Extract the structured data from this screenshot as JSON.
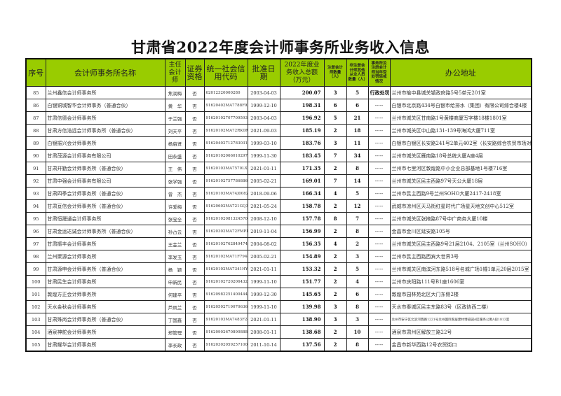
{
  "title": "甘肃省2022年度会计师事务所业务收入信息",
  "header_color": "#99cc00",
  "columns": [
    "序号",
    "会计师事务所名称",
    "主任会计师",
    "证券资格",
    "统一社会信用代码",
    "批准日期",
    "2022年度业务收入总额（万元）",
    "注册会计师数量（人）",
    "非注册会计师其他从业人员数量（人）",
    "事务所及注册会计师当年受处罚惩戒情况",
    "办公地址"
  ],
  "rows": [
    {
      "no": "85",
      "name": "兰州鑫信会计师事务所",
      "head": "焦润梅",
      "sec": "否",
      "code": "62012320000280",
      "date": "2003-04-03",
      "revenue": "200.07",
      "cpa": "3",
      "staff": "5",
      "penalty": "行政处罚",
      "address": "兰州市榆中县城关镇政府路5号5单元201室"
    },
    {
      "no": "86",
      "name": "白银铜城智华会计师事务（普通合伙）",
      "head": "黄　华",
      "sec": "否",
      "code": "91620402MA7788F93",
      "date": "1999-12-10",
      "revenue": "198.31",
      "cpa": "6",
      "staff": "6",
      "penalty": "-----",
      "address": "白银市北京路434号白银市给排水（集团）有限公司综合楼4楼"
    },
    {
      "no": "87",
      "name": "甘肃信德会计师事务所",
      "head": "于兰强",
      "sec": "否",
      "code": "916201027077095938",
      "date": "2003-04-03",
      "revenue": "196.92",
      "cpa": "5",
      "staff": "21",
      "penalty": "-----",
      "address": "兰州市城关区甘南路1号黄楼商厦写字楼18楼1801室"
    },
    {
      "no": "88",
      "name": "甘肃方信浩远会计师事务所（普通合伙）",
      "head": "刘天平",
      "sec": "否",
      "code": "91620102MA72RK0R20",
      "date": "2021-09-03",
      "revenue": "185.19",
      "cpa": "2",
      "staff": "18",
      "penalty": "-----",
      "address": "兰州市城关区中山路131-139号海鸿大厦711室"
    },
    {
      "no": "89",
      "name": "白银振兴会计师事务所",
      "head": "杨启贤",
      "sec": "否",
      "code": "916204027127830318",
      "date": "1999-03-10",
      "revenue": "183.76",
      "cpa": "3",
      "staff": "11",
      "penalty": "-----",
      "address": "白银市白银区长安路241号2单元402室（长安路综合农贸市场对面）"
    },
    {
      "no": "90",
      "name": "甘肃茂源会计师事务有限公司",
      "head": "田永盛",
      "sec": "否",
      "code": "91620102066010297",
      "date": "1999-11-30",
      "revenue": "183.45",
      "cpa": "7",
      "staff": "34",
      "penalty": "-----",
      "address": "兰州市城关区雁南路18号总统大厦A座4层"
    },
    {
      "no": "91",
      "name": "甘肃开勤会计师事务所（普通合伙）",
      "head": "王　伟",
      "sec": "否",
      "code": "91620103MA7570LX0P",
      "date": "2021-01-11",
      "revenue": "171.35",
      "cpa": "2",
      "staff": "8",
      "penalty": "-----",
      "address": "兰州市七里河区敦煌路中小企业总部基地1号楼716室"
    },
    {
      "no": "92",
      "name": "甘肃中强会计师事务有限公司",
      "head": "张学强",
      "sec": "否",
      "code": "91620102757786886",
      "date": "2005-02-21",
      "revenue": "169.01",
      "cpa": "7",
      "staff": "14",
      "penalty": "-----",
      "address": "兰州市城关区民主西路97号天公大厦18层"
    },
    {
      "no": "93",
      "name": "甘肃四季会计师事务所（普通合伙）",
      "head": "曾　杰",
      "sec": "否",
      "code": "91620103MA74J0082M",
      "date": "2018-09-06",
      "revenue": "166.34",
      "cpa": "4",
      "staff": "5",
      "penalty": "-----",
      "address": "兰州市民主西路9号兰州SOHO大厦2417-2418室"
    },
    {
      "no": "94",
      "name": "甘肃亘信会计师事务所（普通合伙）",
      "head": "许爱梅",
      "sec": "否",
      "code": "91620602MA721GQ31",
      "date": "2021-05-24",
      "revenue": "158.78",
      "cpa": "2",
      "staff": "12",
      "penalty": "-----",
      "address": "武威市凉州区天马街红星时代广场星天地文创中心512室"
    },
    {
      "no": "95",
      "name": "甘肃恒晟通会计师事务所",
      "head": "张宝全",
      "sec": "否",
      "code": "91620102081324570",
      "date": "2008-12-10",
      "revenue": "157.78",
      "cpa": "8",
      "staff": "7",
      "penalty": "-----",
      "address": "兰州市城关区张掖路87号中广商务大厦10楼"
    },
    {
      "no": "96",
      "name": "甘肃金运达诚会计师事务所（普通合伙）",
      "head": "孙占云",
      "sec": "否",
      "code": "91620302MA72FMPL74",
      "date": "2019-11-04",
      "revenue": "156.99",
      "cpa": "2",
      "staff": "8",
      "penalty": "-----",
      "address": "金昌市金川区延安路105号"
    },
    {
      "no": "97",
      "name": "甘肃振丰会计师事务所",
      "head": "王金兰",
      "sec": "否",
      "code": "91620102762849474",
      "date": "2004-08-02",
      "revenue": "156.35",
      "cpa": "4",
      "staff": "2",
      "penalty": "-----",
      "address": "兰州市城关区民主西路9号21层2104、2105室（兰州SOHO）"
    },
    {
      "no": "98",
      "name": "兰州聚源会计师事务所",
      "head": "李发玉",
      "sec": "否",
      "code": "91620102MA71F7948",
      "date": "2005-02-21",
      "revenue": "154.89",
      "cpa": "2",
      "staff": "3",
      "penalty": "-----",
      "address": "兰州市民主西路西宾大世界3号"
    },
    {
      "no": "99",
      "name": "甘肃源申会计师事务所（普通合伙）",
      "head": "杨　颖",
      "sec": "否",
      "code": "91620102MA7341HY601",
      "date": "2021-01-11",
      "revenue": "153.32",
      "cpa": "2",
      "staff": "5",
      "penalty": "-----",
      "address": "兰州市城关区南滨河东路518号名城广场1幢1单元20层2015室"
    },
    {
      "no": "100",
      "name": "甘肃民生会计师事务所",
      "head": "申新民",
      "sec": "否",
      "code": "916201027202064324",
      "date": "1999-11-10",
      "revenue": "151.77",
      "cpa": "2",
      "staff": "4",
      "penalty": "-----",
      "address": "兰州市庆阳路111号B1座1606室"
    },
    {
      "no": "101",
      "name": "敦煌方正会计师事务所",
      "head": "何建平",
      "sec": "否",
      "code": "91620982251400444",
      "date": "1999-12-30",
      "revenue": "145.65",
      "cpa": "2",
      "staff": "6",
      "penalty": "-----",
      "address": "敦煌市园林苑北区大门东侧2楼"
    },
    {
      "no": "102",
      "name": "天水金秋会计师事务所",
      "head": "芦凤兰",
      "sec": "否",
      "code": "91620502719070636C",
      "date": "1999-11-10",
      "revenue": "139.98",
      "cpa": "3",
      "staff": "8",
      "penalty": "-----",
      "address": "天水市秦城区民主东路83号（区政协西二楼）"
    },
    {
      "no": "103",
      "name": "甘肃殊尚会计师事务所（普通合伙）",
      "head": "丁国鑫",
      "sec": "否",
      "code": "91620103MA7483F24B",
      "date": "2021-01-11",
      "revenue": "138.90",
      "cpa": "3",
      "staff": "3",
      "penalty": "-----",
      "address": "兰州市安宁区北滨河西路1221号兰州国际家居建材博览园A区服务公寓A段1813室"
    },
    {
      "no": "104",
      "name": "酒泉神舵会计师事务所",
      "head": "郑管理",
      "sec": "否",
      "code": "916209026708908884",
      "date": "2008-01-11",
      "revenue": "138.68",
      "cpa": "2",
      "staff": "10",
      "penalty": "-----",
      "address": "酒泉市肃州区解放三路22号"
    },
    {
      "no": "105",
      "name": "甘肃耀华会计师事务所",
      "head": "李长政",
      "sec": "否",
      "code": "91620302059257100",
      "date": "2011-10-14",
      "revenue": "137.56",
      "cpa": "2",
      "staff": "8",
      "penalty": "-----",
      "address": "金昌市新华西路12号农贸街口"
    }
  ]
}
